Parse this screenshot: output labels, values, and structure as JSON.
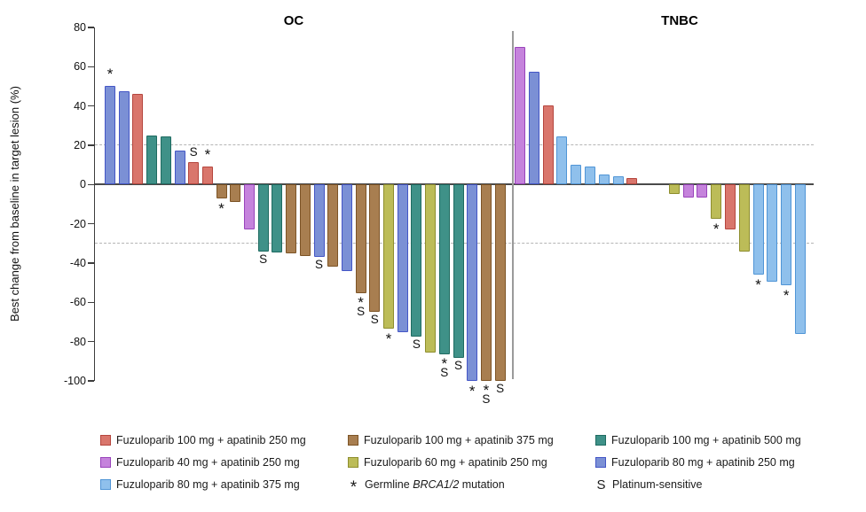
{
  "chart_data": {
    "type": "bar",
    "subtype": "waterfall",
    "title": "",
    "ylabel": "Best change from baseline in target lesion (%)",
    "xlabel": "",
    "ylim": [
      -100,
      80
    ],
    "yticks": [
      80,
      60,
      40,
      20,
      0,
      -20,
      -40,
      -60,
      -80,
      -100
    ],
    "reference_lines": [
      20,
      -30
    ],
    "grid": "off",
    "legend_position": "bottom",
    "marker_meanings": {
      "*": "Germline BRCA1/2 mutation",
      "S": "Platinum-sensitive"
    },
    "series": {
      "f100a250": {
        "label": "Fuzuloparib 100 mg + apatinib 250 mg",
        "fill": "#D9766C",
        "stroke": "#B5463E"
      },
      "f100a375": {
        "label": "Fuzuloparib 100 mg + apatinib 375 mg",
        "fill": "#A87E50",
        "stroke": "#7D5426"
      },
      "f100a500": {
        "label": "Fuzuloparib 100 mg + apatinib 500 mg",
        "fill": "#3F9188",
        "stroke": "#1F6B61"
      },
      "f40a250": {
        "label": "Fuzuloparib 40 mg + apatinib 250 mg",
        "fill": "#C583DC",
        "stroke": "#9944BB"
      },
      "f60a250": {
        "label": "Fuzuloparib 60 mg + apatinib 250 mg",
        "fill": "#BCBC58",
        "stroke": "#8E8E2E"
      },
      "f80a250": {
        "label": "Fuzuloparib 80 mg + apatinib 250 mg",
        "fill": "#7B90D5",
        "stroke": "#4456C6"
      },
      "f80a375": {
        "label": "Fuzuloparib 80 mg + apatinib 375 mg",
        "fill": "#8FC0EC",
        "stroke": "#5095D6"
      }
    },
    "groups": [
      {
        "name": "OC",
        "bars": [
          {
            "value": 50,
            "series": "f80a250",
            "marker": "*"
          },
          {
            "value": 47.5,
            "series": "f80a250"
          },
          {
            "value": 46,
            "series": "f100a250"
          },
          {
            "value": 25,
            "series": "f100a500"
          },
          {
            "value": 24.5,
            "series": "f100a500"
          },
          {
            "value": 17.5,
            "series": "f80a250"
          },
          {
            "value": 11.5,
            "series": "f100a250",
            "marker": "S"
          },
          {
            "value": 9,
            "series": "f100a250",
            "marker": "*"
          },
          {
            "value": -7,
            "series": "f100a375",
            "marker": "*"
          },
          {
            "value": -9,
            "series": "f100a375"
          },
          {
            "value": -23,
            "series": "f40a250"
          },
          {
            "value": -34,
            "series": "f100a500",
            "marker": "S"
          },
          {
            "value": -34.5,
            "series": "f100a500"
          },
          {
            "value": -35,
            "series": "f100a375"
          },
          {
            "value": -36.5,
            "series": "f100a375"
          },
          {
            "value": -37,
            "series": "f80a250",
            "marker": "S"
          },
          {
            "value": -42,
            "series": "f100a375"
          },
          {
            "value": -44,
            "series": "f80a250"
          },
          {
            "value": -55.5,
            "series": "f100a375",
            "marker": "*S"
          },
          {
            "value": -65,
            "series": "f100a375",
            "marker": "S"
          },
          {
            "value": -73.5,
            "series": "f60a250",
            "marker": "*"
          },
          {
            "value": -75,
            "series": "f80a250"
          },
          {
            "value": -77.5,
            "series": "f100a500",
            "marker": "S"
          },
          {
            "value": -85.5,
            "series": "f60a250"
          },
          {
            "value": -86.5,
            "series": "f100a500",
            "marker": "*S"
          },
          {
            "value": -88.5,
            "series": "f100a500",
            "marker": "S"
          },
          {
            "value": -100,
            "series": "f80a250",
            "marker": "*"
          },
          {
            "value": -100,
            "series": "f100a375",
            "marker": "*S"
          },
          {
            "value": -100,
            "series": "f100a375",
            "marker": "S"
          }
        ]
      },
      {
        "name": "TNBC",
        "bars": [
          {
            "value": 70,
            "series": "f40a250"
          },
          {
            "value": 57.5,
            "series": "f80a250"
          },
          {
            "value": 40.5,
            "series": "f100a250"
          },
          {
            "value": 24.5,
            "series": "f80a375"
          },
          {
            "value": 10,
            "series": "f80a375"
          },
          {
            "value": 9,
            "series": "f80a375"
          },
          {
            "value": 5,
            "series": "f80a375"
          },
          {
            "value": 4,
            "series": "f80a375"
          },
          {
            "value": 3.5,
            "series": "f100a250"
          },
          null,
          null,
          {
            "value": -5,
            "series": "f60a250"
          },
          {
            "value": -6.5,
            "series": "f40a250"
          },
          {
            "value": -6.5,
            "series": "f40a250"
          },
          {
            "value": -17.5,
            "series": "f60a250",
            "marker": "*"
          },
          {
            "value": -23,
            "series": "f100a250"
          },
          {
            "value": -34,
            "series": "f60a250"
          },
          {
            "value": -46,
            "series": "f80a375",
            "marker": "*"
          },
          {
            "value": -49.5,
            "series": "f80a375"
          },
          {
            "value": -51.5,
            "series": "f80a375",
            "marker": "*"
          },
          {
            "value": -76,
            "series": "f80a375"
          }
        ]
      }
    ]
  },
  "legend": {
    "cells": [
      {
        "type": "series",
        "key": "f100a250"
      },
      {
        "type": "series",
        "key": "f100a375"
      },
      {
        "type": "series",
        "key": "f100a500"
      },
      {
        "type": "series",
        "key": "f40a250"
      },
      {
        "type": "series",
        "key": "f60a250"
      },
      {
        "type": "series",
        "key": "f80a250"
      },
      {
        "type": "series",
        "key": "f80a375"
      },
      {
        "type": "symbol",
        "symbol": "*",
        "parts": [
          {
            "text": "Germline "
          },
          {
            "text": "BRCA1/2",
            "italic": true
          },
          {
            "text": " mutation"
          }
        ]
      },
      {
        "type": "symbol",
        "symbol": "S",
        "parts": [
          {
            "text": "Platinum-sensitive"
          }
        ]
      }
    ]
  }
}
